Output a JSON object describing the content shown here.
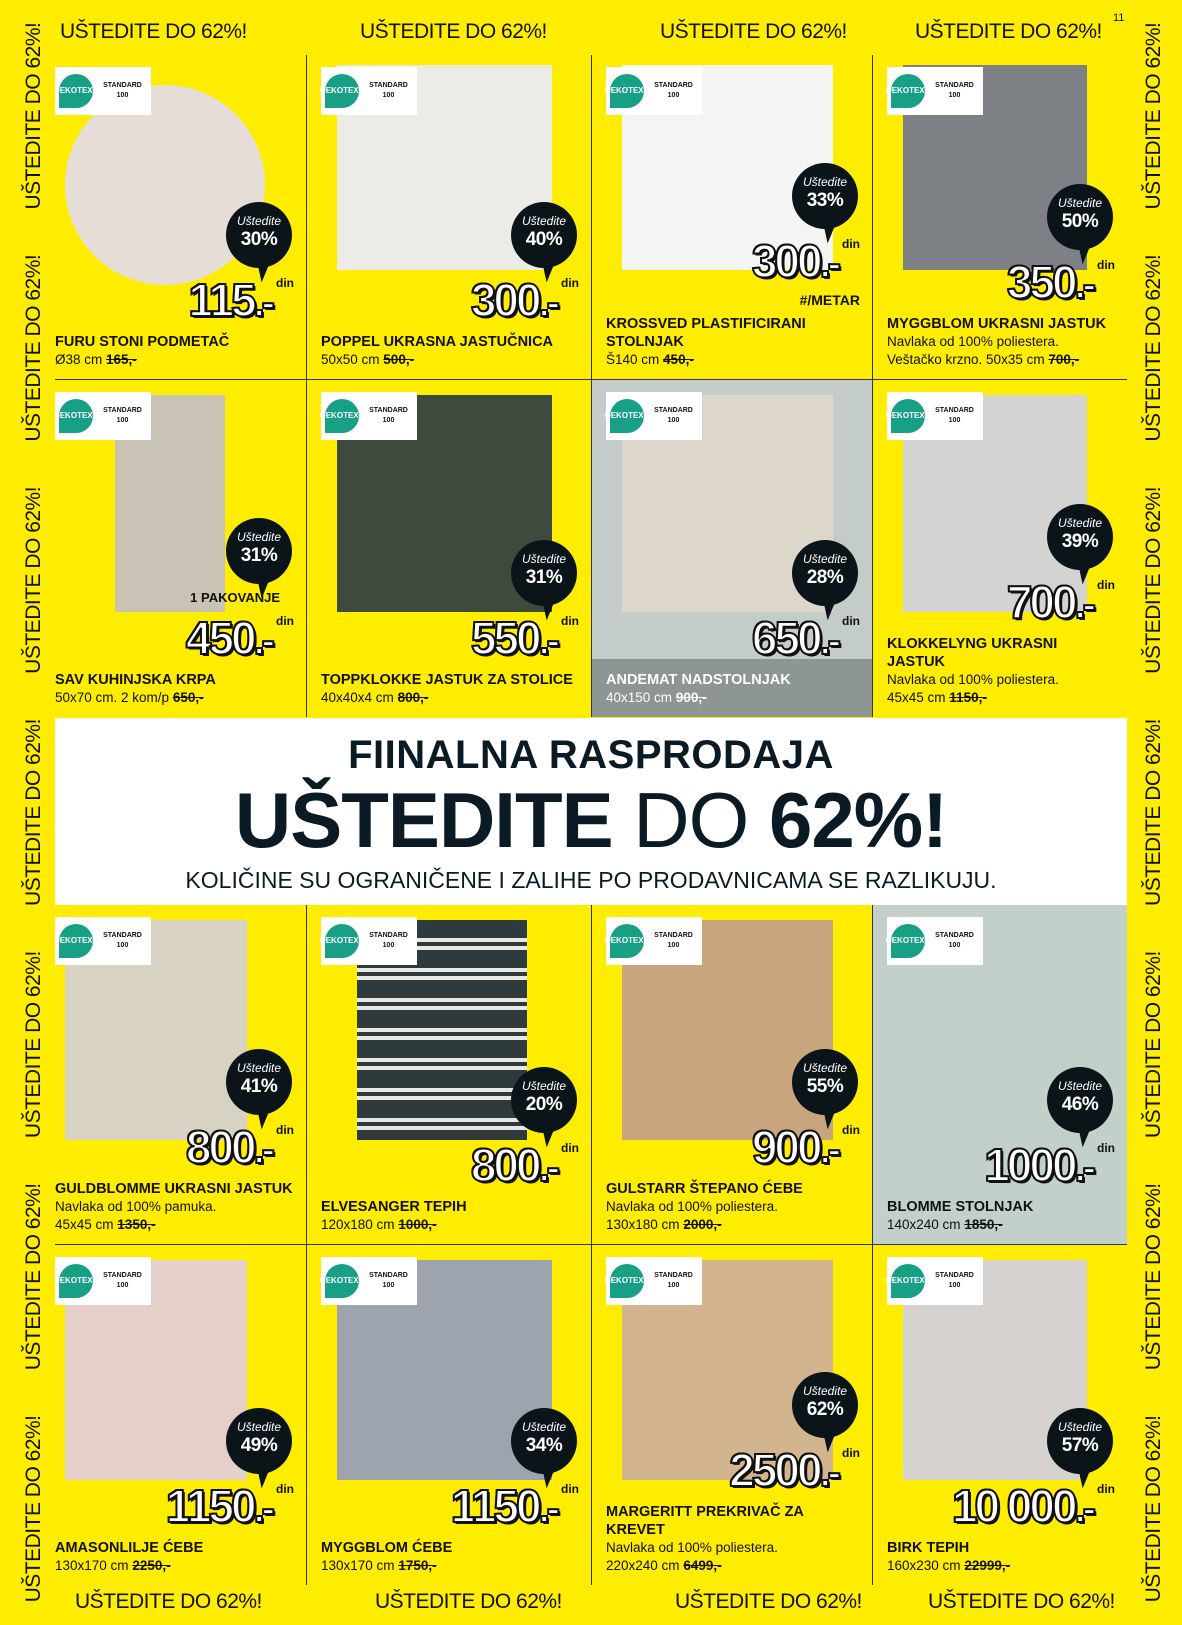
{
  "page_number": "11",
  "slogan": "UŠTEDITE DO 62%!",
  "colors": {
    "background": "#ffed00",
    "bubble": "#0b1419",
    "oeko": "#17a085"
  },
  "oeko_badge": {
    "brand_line1": "OEKO",
    "brand_line2": "TEX®",
    "standard": "STANDARD",
    "number": "100"
  },
  "save_label": "Uštedite",
  "currency": "din",
  "banner": {
    "title": "FIINALNA RASPRODAJA",
    "headline_bold1": "UŠTEDITE",
    "headline_regular": "DO",
    "headline_bold2": "62%!",
    "subtitle": "KOLIČINE SU OGRANIČENE I ZALIHE PO PRODAVNICAMA SE RAZLIKUJU."
  },
  "products": [
    {
      "name": "FURU STONI PODMETAČ",
      "desc": [],
      "size": "Ø38 cm",
      "old_price": "165,-",
      "price": "115",
      "save": "30%",
      "image": "round-placemat",
      "color": "#e6ddd6"
    },
    {
      "name": "POPPEL UKRASNA JASTUČNICA",
      "desc": [],
      "size": "50x50 cm",
      "old_price": "500,-",
      "price": "300",
      "save": "40%",
      "image": "cushion-cover",
      "color": "#ecebe6"
    },
    {
      "name": "KROSSVED PLASTIFICIRANI STOLNJAK",
      "desc": [],
      "size": "Š140 cm",
      "old_price": "450,-",
      "price": "300",
      "note": "#/METAR",
      "save": "33%",
      "image": "tablecloth-roll",
      "color": "#f4f4f2"
    },
    {
      "name": "MYGGBLOM UKRASNI JASTUK",
      "desc": [
        "Navlaka od 100% poliestera."
      ],
      "size": "Veštačko krzno. 50x35 cm",
      "old_price": "700,-",
      "price": "350",
      "save": "50%",
      "image": "fur-cushion",
      "color": "#7d8186"
    },
    {
      "name": "SAV KUHINJSKA KRPA",
      "desc": [],
      "size": "50x70 cm. 2 kom/p",
      "old_price": "650,-",
      "price": "450",
      "pack": "1 PAKOVANJE",
      "save": "31%",
      "image": "kitchen-towel",
      "color": "#c9c3b6"
    },
    {
      "name": "TOPPKLOKKE JASTUK ZA STOLICE",
      "desc": [],
      "size": "40x40x4 cm",
      "old_price": "800,-",
      "price": "550",
      "save": "31%",
      "image": "chair-cushion",
      "color": "#3d4a3c"
    },
    {
      "name": "ANDEMAT NADSTOLNJAK",
      "desc": [],
      "size": "40x150 cm",
      "old_price": "900,-",
      "price": "650",
      "save": "28%",
      "image": "table-runner",
      "color": "#ddd7cb",
      "dark": true
    },
    {
      "name": "KLOKKELYNG UKRASNI JASTUK",
      "desc": [
        "Navlaka od 100% poliestera."
      ],
      "size": "45x45 cm",
      "old_price": "1150,-",
      "price": "700",
      "save": "39%",
      "image": "grey-cushion",
      "color": "#d3d4d2"
    },
    {
      "name": "GULDBLOMME UKRASNI JASTUK",
      "desc": [
        "Navlaka od 100% pamuka."
      ],
      "size": "45x45 cm",
      "old_price": "1350,-",
      "price": "800",
      "save": "41%",
      "image": "ruffle-cushion",
      "color": "#d8d2c2"
    },
    {
      "name": "ELVESANGER TEPIH",
      "desc": [],
      "size": "120x180 cm",
      "old_price": "1000,-",
      "price": "800",
      "save": "20%",
      "image": "striped-rug",
      "color": "#3a4446"
    },
    {
      "name": "GULSTARR ŠTEPANO ĆEBE",
      "desc": [
        "Navlaka od 100% poliestera."
      ],
      "size": "130x180 cm",
      "old_price": "2000,-",
      "price": "900",
      "save": "55%",
      "image": "quilted-blanket",
      "color": "#c8a57d"
    },
    {
      "name": "BLOMME STOLNJAK",
      "desc": [],
      "size": "140x240 cm",
      "old_price": "1850,-",
      "price": "1000",
      "save": "46%",
      "image": "tablecloth",
      "color": "#c3d0c9",
      "photo": true
    },
    {
      "name": "AMASONLILJE ĆEBE",
      "desc": [],
      "size": "130x170 cm",
      "old_price": "2250,-",
      "price": "1150",
      "save": "49%",
      "image": "striped-throw",
      "color": "#e4cfc9"
    },
    {
      "name": "MYGGBLOM ĆEBE",
      "desc": [],
      "size": "130x170 cm",
      "old_price": "1750,-",
      "price": "1150",
      "save": "34%",
      "image": "fur-throw",
      "color": "#9ea4ad"
    },
    {
      "name": "MARGERITT PREKRIVAČ ZA KREVET",
      "desc": [
        "Navlaka od 100% poliestera."
      ],
      "size": "220x240 cm",
      "old_price": "6499,-",
      "price": "2500",
      "save": "62%",
      "image": "bedspread",
      "color": "#d2b48e"
    },
    {
      "name": "BIRK TEPIH",
      "desc": [],
      "size": "160x230 cm",
      "old_price": "22999,-",
      "price": "10 000",
      "save": "57%",
      "image": "grey-rug",
      "color": "#d6d2d0"
    }
  ]
}
